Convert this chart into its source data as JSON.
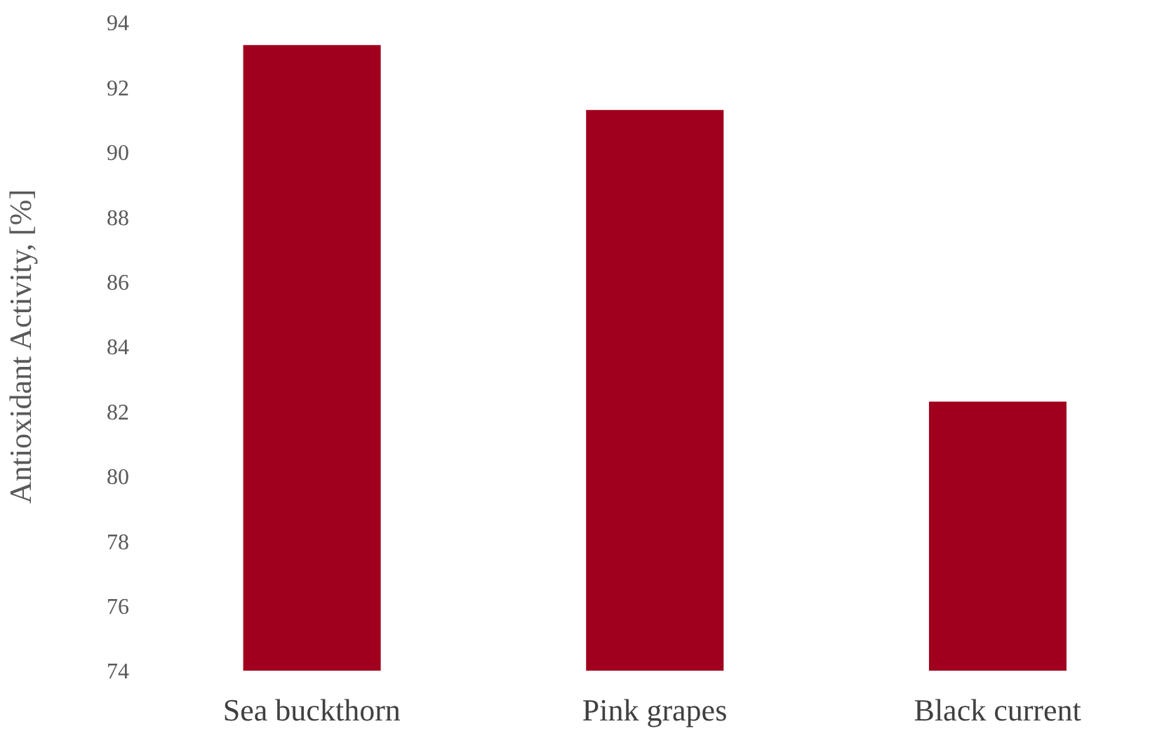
{
  "chart_data": {
    "type": "bar",
    "ylabel": "Antioxidant Activity, [%]",
    "categories": [
      "Sea buckthorn",
      "Pink grapes",
      "Black current"
    ],
    "values": [
      93.3,
      91.3,
      82.3
    ],
    "color": "#a0001e",
    "ylim": [
      74,
      94
    ],
    "yticks": [
      74,
      76,
      78,
      80,
      82,
      84,
      86,
      88,
      90,
      92,
      94
    ],
    "grid": false
  }
}
